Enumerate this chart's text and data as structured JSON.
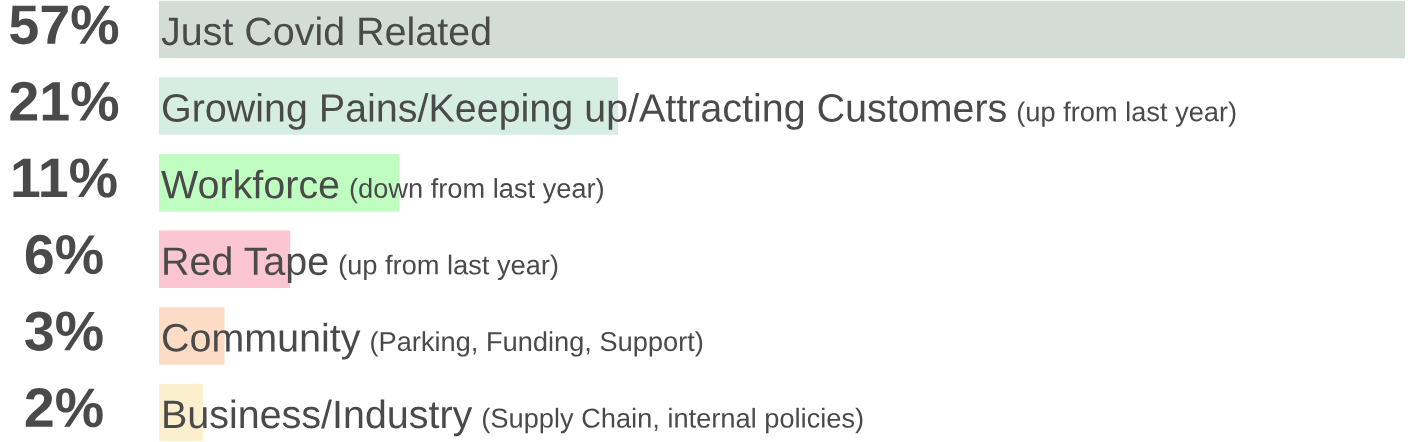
{
  "chart_data": {
    "type": "bar",
    "orientation": "horizontal",
    "categories": [
      "Just Covid Related",
      "Growing Pains/Keeping up/Attracting Customers (up from last year)",
      "Workforce (down from last year)",
      "Red Tape (up from last year)",
      "Community (Parking, Funding, Support)",
      "Business/Industry (Supply Chain, internal policies)"
    ],
    "values": [
      57,
      21,
      11,
      6,
      3,
      2
    ],
    "colors": [
      "#d3ddd5",
      "#d6ede3",
      "#c0fdc0",
      "#fbc6d2",
      "#fddcc5",
      "#fcefcd"
    ],
    "value_labels": [
      "57%",
      "21%",
      "11%",
      "6%",
      "3%",
      "2%"
    ],
    "tick_labels": false
  }
}
